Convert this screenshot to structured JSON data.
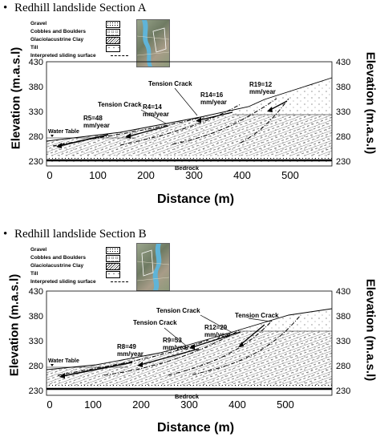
{
  "sections": [
    {
      "title": "Redhill landslide Section A",
      "legend": {
        "gravel": "Gravel",
        "cobbles": "Cobbles and Boulders",
        "clay": "Glaciolacustrine Clay",
        "till": "Till",
        "sliding": "Interpreted sliding surface"
      },
      "y_axis_label": "Elevation (m.a.s.l)",
      "y_axis_label_right": "Elevation (m.a.s.l)",
      "x_axis_label": "Distance (m)",
      "y_ticks": [
        "430",
        "380",
        "330",
        "280",
        "230"
      ],
      "y_ticks_right": [
        "430",
        "380",
        "330",
        "280",
        "230"
      ],
      "x_ticks": [
        "0",
        "100",
        "200",
        "300",
        "400",
        "500"
      ],
      "water_table": "Water Table",
      "bedrock": "Bedrock",
      "annotations": {
        "tension_crack_1": "Tension Crack",
        "tension_crack_2": "Tension Crack",
        "r5_line1": "R5=48",
        "r5_line2": "mm/year",
        "r4_line1": "R4=14",
        "r4_line2": "mm/year",
        "r14_line1": "R14=16",
        "r14_line2": "mm/year",
        "r19_line1": "R19=12",
        "r19_line2": "mm/year"
      }
    },
    {
      "title": "Redhill landslide Section B",
      "legend": {
        "gravel": "Gravel",
        "cobbles": "Cobbles and Boulders",
        "clay": "Glaciolacustrine Clay",
        "till": "Till",
        "sliding": "Interpreted sliding surface"
      },
      "y_axis_label": "Elevation (m.a.s.l)",
      "y_axis_label_right": "Elevation (m.a.s.l)",
      "x_axis_label": "Distance (m)",
      "y_ticks": [
        "430",
        "380",
        "330",
        "280",
        "230"
      ],
      "y_ticks_right": [
        "430",
        "380",
        "330",
        "280",
        "230"
      ],
      "x_ticks": [
        "0",
        "100",
        "200",
        "300",
        "400",
        "500"
      ],
      "water_table": "Water Table",
      "bedrock": "Bedrock",
      "annotations": {
        "tension_crack_1": "Tension Crack",
        "tension_crack_2": "Tension Crack",
        "tension_crack_3": "Tension Crack",
        "r8_line1": "R8=49",
        "r8_line2": "mm/year",
        "r9_line1": "R9=53",
        "r9_line2": "mm/year",
        "r12_line1": "R12=29",
        "r12_line2": "mm/year"
      }
    }
  ],
  "colors": {
    "river": "#5fb4d8",
    "ink": "#000000"
  },
  "icons": {
    "bullet": "bullet-dot-icon",
    "map": "site-map-thumbnail"
  }
}
